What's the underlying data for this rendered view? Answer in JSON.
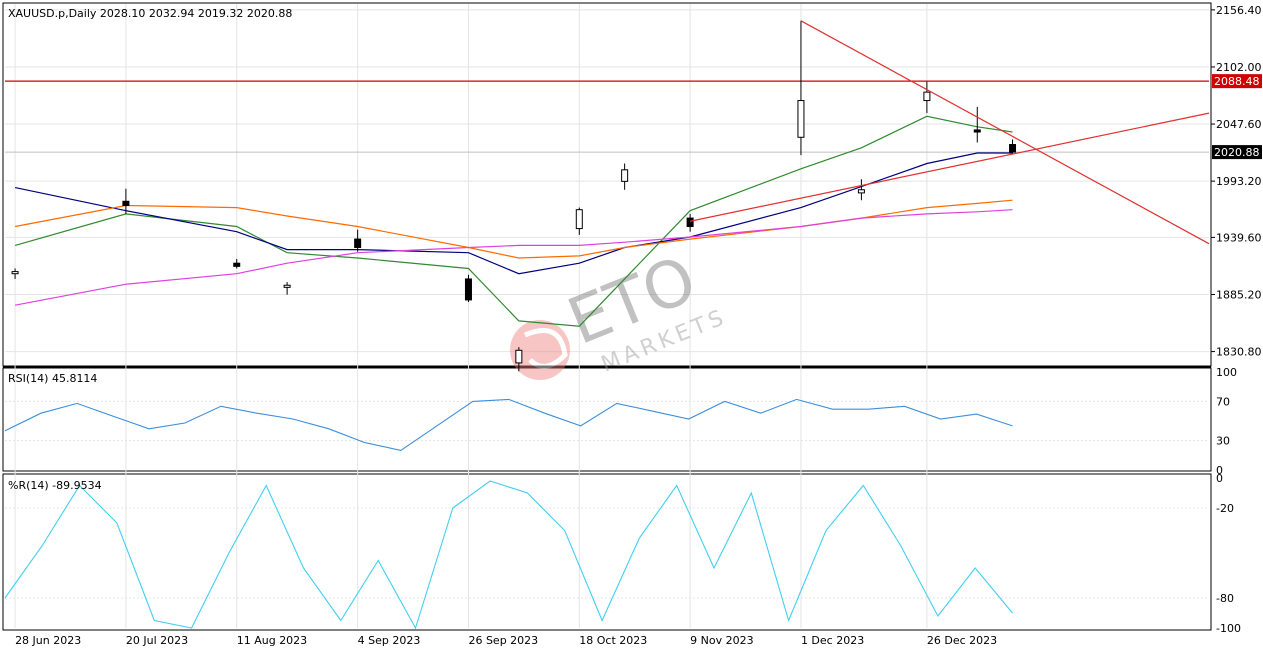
{
  "chart_data": {
    "type": "candlestick",
    "symbol_header": "XAUUSD.p,Daily  2028.10 2032.94 2019.32 2020.88",
    "ohlc_last": {
      "open": 2028.1,
      "high": 2032.94,
      "low": 2019.32,
      "close": 2020.88
    },
    "x_tick_labels": [
      "28 Jun 2023",
      "20 Jul 2023",
      "11 Aug 2023",
      "4 Sep 2023",
      "26 Sep 2023",
      "18 Oct 2023",
      "9 Nov 2023",
      "1 Dec 2023",
      "26 Dec 2023"
    ],
    "price_axis": {
      "ticks": [
        "2156.40",
        "2102.00",
        "2047.60",
        "1993.20",
        "1939.60",
        "1885.20",
        "1830.80"
      ],
      "range": [
        1818,
        2162
      ],
      "horizontal_level": 2088.48,
      "horizontal_level_label": "2088.48",
      "last_price": 2020.88,
      "last_price_label": "2020.88"
    },
    "candles": [
      {
        "date": "2023-06-28",
        "o": 1905,
        "h": 1910,
        "l": 1900,
        "c": 1907
      },
      {
        "date": "2023-07-20",
        "o": 1974,
        "h": 1986,
        "l": 1962,
        "c": 1970
      },
      {
        "date": "2023-08-11",
        "o": 1915,
        "h": 1919,
        "l": 1910,
        "c": 1912
      },
      {
        "date": "2023-08-21",
        "o": 1892,
        "h": 1897,
        "l": 1885,
        "c": 1894
      },
      {
        "date": "2023-09-04",
        "o": 1938,
        "h": 1947,
        "l": 1926,
        "c": 1930
      },
      {
        "date": "2023-09-26",
        "o": 1900,
        "h": 1904,
        "l": 1878,
        "c": 1880
      },
      {
        "date": "2023-10-06",
        "o": 1820,
        "h": 1835,
        "l": 1812,
        "c": 1832
      },
      {
        "date": "2023-10-18",
        "o": 1948,
        "h": 1968,
        "l": 1942,
        "c": 1966
      },
      {
        "date": "2023-10-27",
        "o": 1993,
        "h": 2010,
        "l": 1985,
        "c": 2004
      },
      {
        "date": "2023-11-09",
        "o": 1958,
        "h": 1962,
        "l": 1945,
        "c": 1950
      },
      {
        "date": "2023-12-01",
        "o": 2035,
        "h": 2146,
        "l": 2018,
        "c": 2070
      },
      {
        "date": "2023-12-13",
        "o": 1982,
        "h": 1995,
        "l": 1975,
        "c": 1985
      },
      {
        "date": "2023-12-26",
        "o": 2070,
        "h": 2088,
        "l": 2058,
        "c": 2078
      },
      {
        "date": "2024-01-05",
        "o": 2042,
        "h": 2064,
        "l": 2030,
        "c": 2040
      },
      {
        "date": "2024-01-12",
        "o": 2028.1,
        "h": 2032.94,
        "l": 2019.32,
        "c": 2020.88
      }
    ],
    "trendlines": [
      {
        "name": "",
        "from": [
          "2023-12-01",
          2146
        ],
        "to": [
          "2024-01-15",
          2028
        ]
      },
      {
        "name": "",
        "from": [
          "2023-11-09",
          1955
        ],
        "to": [
          "2024-01-15",
          2022
        ]
      }
    ],
    "moving_averages": [
      {
        "name": "",
        "color": "#2e8b2e",
        "values": [
          1932,
          1962,
          1950,
          1925,
          1920,
          1910,
          1860,
          1855,
          1900,
          1965,
          2005,
          2025,
          2055,
          2045,
          2040
        ]
      },
      {
        "name": "",
        "color": "#000080",
        "values": [
          1987,
          1965,
          1945,
          1928,
          1928,
          1925,
          1905,
          1915,
          1930,
          1940,
          1968,
          1988,
          2010,
          2020,
          2020
        ]
      },
      {
        "name": "",
        "color": "#ff6a00",
        "values": [
          1950,
          1970,
          1968,
          1960,
          1950,
          1930,
          1920,
          1922,
          1930,
          1938,
          1950,
          1958,
          1968,
          1972,
          1975
        ]
      },
      {
        "name": "",
        "color": "#e040e0",
        "values": [
          1875,
          1895,
          1905,
          1915,
          1925,
          1930,
          1932,
          1932,
          1935,
          1940,
          1950,
          1958,
          1962,
          1964,
          1966
        ]
      }
    ],
    "rsi": {
      "label": "RSI(14) 45.8114",
      "period": 14,
      "last": 45.8114,
      "ticks": [
        "100",
        "70",
        "30",
        "0"
      ],
      "range": [
        0,
        100
      ],
      "color": "#3b8fdc",
      "values": [
        40,
        58,
        68,
        55,
        42,
        48,
        65,
        58,
        52,
        42,
        28,
        20,
        45,
        70,
        72,
        58,
        45,
        68,
        60,
        52,
        70,
        58,
        72,
        62,
        62,
        65,
        52,
        57,
        45
      ]
    },
    "williams_r": {
      "label": "%R(14) -89.9534",
      "period": 14,
      "last": -89.9534,
      "ticks": [
        "0",
        "-20",
        "-80",
        "-100"
      ],
      "range": [
        -100,
        0
      ],
      "color": "#40d0f0",
      "values": [
        -80,
        -45,
        -5,
        -30,
        -95,
        -100,
        -50,
        -5,
        -60,
        -95,
        -55,
        -100,
        -20,
        -2,
        -10,
        -35,
        -95,
        -40,
        -5,
        -60,
        -10,
        -95,
        -35,
        -5,
        -45,
        -92,
        -60,
        -90
      ]
    },
    "watermark": "ETO MARKETS"
  }
}
